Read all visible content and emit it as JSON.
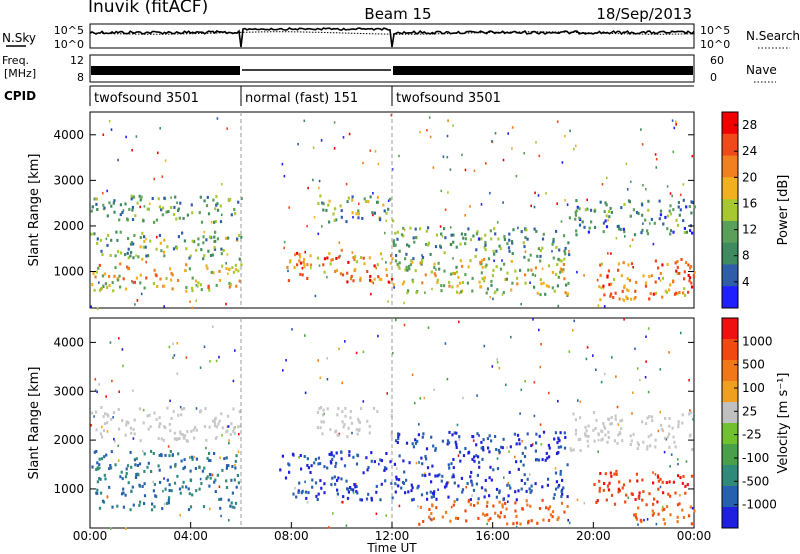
{
  "header": {
    "station": "Inuvik (fitACF)",
    "beam": "Beam 15",
    "date": "18/Sep/2013"
  },
  "strip_labels": {
    "nsky": "N.Sky",
    "nsky_tick_top": "10^5",
    "nsky_tick_bottom": "10^0",
    "nsearch": "N.Search",
    "nsearch_tick_top": "10^5",
    "nsearch_tick_bottom": "10^0",
    "freq": "Freq.",
    "freq_unit": "[MHz]",
    "freq_tick_top": "12",
    "freq_tick_bottom": "8",
    "nave": "Nave",
    "nave_tick_top": "60",
    "nave_tick_bottom": "0",
    "cpid": "CPID"
  },
  "cpid_segments": [
    {
      "label": "twofsound 3501",
      "start_h": 0,
      "end_h": 6
    },
    {
      "label": "normal (fast) 151",
      "start_h": 6,
      "end_h": 12
    },
    {
      "label": "twofsound 3501",
      "start_h": 12,
      "end_h": 24
    }
  ],
  "colors": {
    "power_scale": [
      "#1f1fff",
      "#2f5ea8",
      "#3f8a5e",
      "#5aa05a",
      "#a8c832",
      "#f0b020",
      "#f08020",
      "#f04a1a",
      "#f00000"
    ],
    "velocity_scale": [
      "#1f1fe0",
      "#2860b0",
      "#2f8a7a",
      "#4aa04a",
      "#70c030",
      "#c0c0c0",
      "#f0a020",
      "#f07818",
      "#f04a10",
      "#f01010"
    ],
    "grey_scatter": "#c8c8c8"
  },
  "chart_data": [
    {
      "type": "heatmap",
      "title": "",
      "xlabel": "",
      "ylabel": "Slant Range [km]",
      "xlim": [
        0,
        24
      ],
      "ylim": [
        200,
        4500
      ],
      "y_ticks": [
        "1000",
        "2000",
        "3000",
        "4000"
      ],
      "colorbar": {
        "label": "Power [dB]",
        "ticks": [
          "4",
          "8",
          "12",
          "16",
          "20",
          "24",
          "28"
        ],
        "range": [
          0,
          30
        ]
      },
      "scatter_bands": [
        {
          "name": "low",
          "t_start": 0.0,
          "t_end": 6.0,
          "r_min": 600,
          "r_max": 1200,
          "level": 0.8
        },
        {
          "name": "mid",
          "t_start": 0.0,
          "t_end": 6.0,
          "r_min": 1300,
          "r_max": 1900,
          "level": 0.6
        },
        {
          "name": "high",
          "t_start": 0.0,
          "t_end": 6.0,
          "r_min": 2100,
          "r_max": 2700,
          "level": 0.55
        },
        {
          "name": "morning-strong",
          "t_start": 7.8,
          "t_end": 12.0,
          "r_min": 800,
          "r_max": 1500,
          "level": 0.95
        },
        {
          "name": "morning-high",
          "t_start": 9.0,
          "t_end": 12.0,
          "r_min": 2100,
          "r_max": 2700,
          "level": 0.6
        },
        {
          "name": "afternoon-low",
          "t_start": 12.0,
          "t_end": 19.0,
          "r_min": 500,
          "r_max": 1300,
          "level": 0.75
        },
        {
          "name": "afternoon-mid",
          "t_start": 12.0,
          "t_end": 19.0,
          "r_min": 1300,
          "r_max": 2000,
          "level": 0.55
        },
        {
          "name": "evening-strong",
          "t_start": 20.0,
          "t_end": 24.0,
          "r_min": 400,
          "r_max": 1300,
          "level": 0.95
        },
        {
          "name": "evening-high",
          "t_start": 19.0,
          "t_end": 24.0,
          "r_min": 1800,
          "r_max": 2600,
          "level": 0.5
        }
      ]
    },
    {
      "type": "heatmap",
      "title": "",
      "xlabel": "Time UT",
      "ylabel": "Slant Range [km]",
      "xlim": [
        0,
        24
      ],
      "ylim": [
        200,
        4500
      ],
      "x_ticks": [
        "00:00",
        "04:00",
        "08:00",
        "12:00",
        "16:00",
        "20:00",
        "00:00"
      ],
      "y_ticks": [
        "1000",
        "2000",
        "3000",
        "4000"
      ],
      "colorbar": {
        "label": "Velocity [m s⁻¹]",
        "ticks": [
          "1000",
          "500",
          "100",
          "25",
          "-25",
          "-100",
          "-500",
          "-1000"
        ],
        "range": [
          -1000,
          1000
        ]
      },
      "scatter_bands": [
        {
          "name": "grey-ground",
          "t_start": 0.0,
          "t_end": 6.0,
          "r_min": 2000,
          "r_max": 2700,
          "level": 0.5
        },
        {
          "name": "green-low",
          "t_start": 0.0,
          "t_end": 6.0,
          "r_min": 600,
          "r_max": 1800,
          "level": 0.7
        },
        {
          "name": "blue-morning",
          "t_start": 7.5,
          "t_end": 12.0,
          "r_min": 800,
          "r_max": 1800,
          "level": 0.85
        },
        {
          "name": "grey-morning",
          "t_start": 9.0,
          "t_end": 12.0,
          "r_min": 2100,
          "r_max": 2700,
          "level": 0.5
        },
        {
          "name": "blue-afternoon",
          "t_start": 12.0,
          "t_end": 19.0,
          "r_min": 800,
          "r_max": 2200,
          "level": 0.8
        },
        {
          "name": "orange-afternoon",
          "t_start": 13.0,
          "t_end": 19.0,
          "r_min": 300,
          "r_max": 800,
          "level": -0.6
        },
        {
          "name": "red-evening",
          "t_start": 20.0,
          "t_end": 24.0,
          "r_min": 700,
          "r_max": 1400,
          "level": -0.9
        },
        {
          "name": "orange-evening",
          "t_start": 21.5,
          "t_end": 24.0,
          "r_min": 300,
          "r_max": 700,
          "level": -0.6
        },
        {
          "name": "grey-evening",
          "t_start": 19.0,
          "t_end": 24.0,
          "r_min": 1800,
          "r_max": 2600,
          "level": 0.5
        }
      ]
    }
  ]
}
